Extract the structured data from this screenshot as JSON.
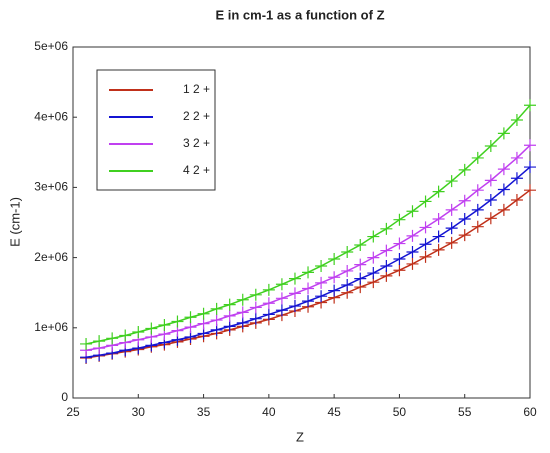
{
  "chart_data": {
    "type": "line",
    "title": "E in cm-1 as a function of Z",
    "xlabel": "Z",
    "ylabel": "E (cm-1)",
    "x": [
      26,
      27,
      28,
      29,
      30,
      31,
      32,
      33,
      34,
      35,
      36,
      37,
      38,
      39,
      40,
      41,
      42,
      43,
      44,
      45,
      46,
      47,
      48,
      49,
      50,
      51,
      52,
      53,
      54,
      55,
      56,
      57,
      58,
      59,
      60
    ],
    "series": [
      {
        "name": "1 2 +",
        "color": "#c0301a",
        "values": [
          570000,
          600000,
          630000,
          660000,
          690000,
          730000,
          760000,
          800000,
          840000,
          880000,
          920000,
          970000,
          1020000,
          1070000,
          1120000,
          1180000,
          1240000,
          1300000,
          1360000,
          1430000,
          1500000,
          1580000,
          1650000,
          1740000,
          1820000,
          1910000,
          2010000,
          2110000,
          2210000,
          2320000,
          2440000,
          2560000,
          2680000,
          2820000,
          2960000
        ]
      },
      {
        "name": "2 2 +",
        "color": "#1414d2",
        "values": [
          580000,
          610000,
          640000,
          680000,
          710000,
          750000,
          790000,
          830000,
          870000,
          920000,
          970000,
          1020000,
          1070000,
          1130000,
          1190000,
          1250000,
          1310000,
          1380000,
          1450000,
          1530000,
          1610000,
          1700000,
          1780000,
          1880000,
          1980000,
          2080000,
          2190000,
          2300000,
          2420000,
          2550000,
          2680000,
          2820000,
          2970000,
          3130000,
          3290000
        ]
      },
      {
        "name": "3 2 +",
        "color": "#c040f0",
        "values": [
          680000,
          710000,
          750000,
          790000,
          830000,
          870000,
          910000,
          960000,
          1010000,
          1060000,
          1110000,
          1170000,
          1220000,
          1290000,
          1350000,
          1420000,
          1490000,
          1560000,
          1640000,
          1720000,
          1810000,
          1900000,
          2000000,
          2100000,
          2200000,
          2310000,
          2430000,
          2550000,
          2680000,
          2810000,
          2960000,
          3100000,
          3260000,
          3420000,
          3600000
        ]
      },
      {
        "name": "4 2 +",
        "color": "#40d020",
        "values": [
          770000,
          810000,
          850000,
          890000,
          940000,
          990000,
          1040000,
          1090000,
          1150000,
          1200000,
          1270000,
          1330000,
          1400000,
          1470000,
          1540000,
          1620000,
          1700000,
          1790000,
          1880000,
          1980000,
          2080000,
          2180000,
          2300000,
          2410000,
          2540000,
          2660000,
          2800000,
          2940000,
          3090000,
          3250000,
          3420000,
          3590000,
          3770000,
          3960000,
          4170000
        ]
      }
    ],
    "xlim": [
      25,
      60
    ],
    "xticks": [
      25,
      30,
      35,
      40,
      45,
      50,
      55,
      60
    ],
    "ylim": [
      0,
      5000000
    ],
    "yticks": [
      0,
      {
        "value": 1000000,
        "label": "1e+06"
      },
      {
        "value": 2000000,
        "label": "2e+06"
      },
      {
        "value": 3000000,
        "label": "3e+06"
      },
      {
        "value": 4000000,
        "label": "4e+06"
      },
      {
        "value": 5000000,
        "label": "5e+06"
      }
    ],
    "legend": "upper left",
    "grid": false
  }
}
